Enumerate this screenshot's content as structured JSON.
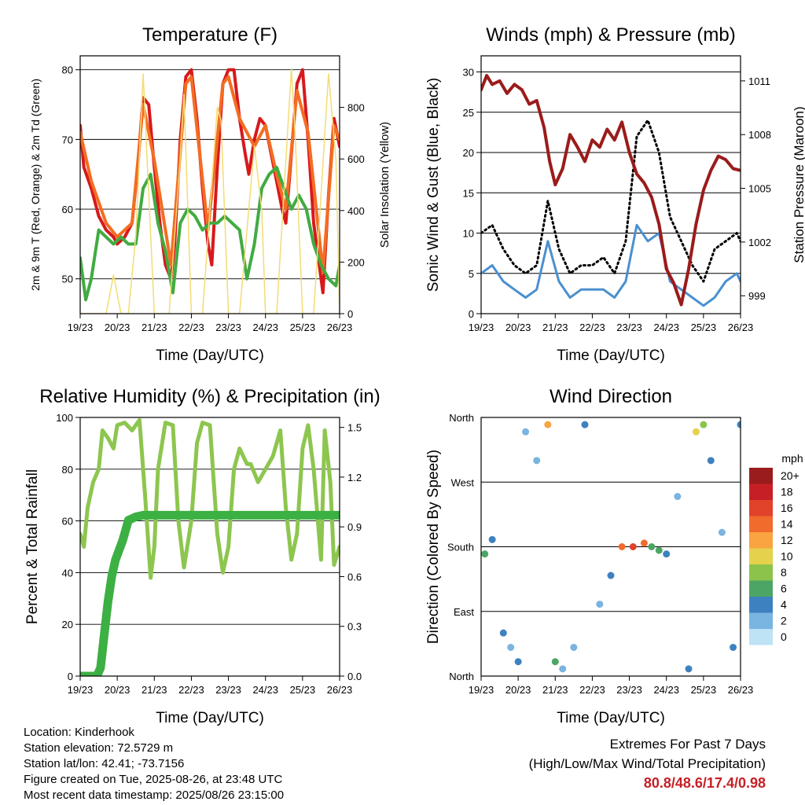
{
  "chart_data": [
    {
      "type": "line",
      "title": "Temperature (F)",
      "xlabel": "Time (Day/UTC)",
      "ylabel_left": "2m & 9m T (Red, Orange) & 2m Td (Green)",
      "ylabel_right": "Solar Insolation (Yellow)",
      "x_ticks": [
        "19/23",
        "20/23",
        "21/23",
        "22/23",
        "23/23",
        "24/23",
        "25/23",
        "26/23"
      ],
      "ylim_left": [
        45,
        82
      ],
      "yticks_left": [
        50,
        60,
        70,
        80
      ],
      "ylim_right": [
        0,
        1000
      ],
      "yticks_right": [
        0,
        200,
        400,
        600,
        800
      ],
      "grid": "horizontal",
      "series": [
        {
          "name": "2m T",
          "color": "#d7191c",
          "axis": "left",
          "x": [
            0,
            0.1,
            0.3,
            0.5,
            0.7,
            0.9,
            1.0,
            1.2,
            1.4,
            1.55,
            1.7,
            1.85,
            2.0,
            2.15,
            2.3,
            2.45,
            2.55,
            2.7,
            2.85,
            3.0,
            3.15,
            3.3,
            3.45,
            3.55,
            3.7,
            3.85,
            4.0,
            4.15,
            4.3,
            4.45,
            4.55,
            4.7,
            4.85,
            5.0,
            5.15,
            5.3,
            5.45,
            5.55,
            5.7,
            5.85,
            6.0,
            6.15,
            6.3,
            6.45,
            6.55,
            6.7,
            6.85,
            7.0
          ],
          "y": [
            72,
            66,
            63,
            59,
            57,
            56,
            55,
            56,
            58,
            66,
            76,
            75,
            66,
            58,
            52,
            50,
            55,
            70,
            79,
            80,
            73,
            63,
            55,
            52,
            66,
            78,
            80,
            80,
            73,
            68,
            65,
            70,
            73,
            72,
            68,
            64,
            60,
            58,
            68,
            78,
            80,
            70,
            58,
            52,
            48,
            62,
            73,
            69
          ]
        },
        {
          "name": "9m T",
          "color": "#f46d22",
          "axis": "left",
          "x": [
            0,
            0.3,
            0.7,
            1.0,
            1.4,
            1.7,
            2.0,
            2.45,
            2.85,
            3.0,
            3.45,
            3.85,
            4.0,
            4.3,
            4.7,
            5.0,
            5.3,
            5.55,
            5.85,
            6.15,
            6.55,
            6.85,
            7.0
          ],
          "y": [
            71,
            64,
            58,
            56,
            58,
            75,
            67,
            52,
            78,
            79,
            57,
            78,
            79,
            73,
            69,
            72,
            65,
            60,
            77,
            71,
            51,
            72,
            70
          ]
        },
        {
          "name": "2m Td",
          "color": "#41ab41",
          "axis": "left",
          "x": [
            0,
            0.15,
            0.3,
            0.5,
            0.7,
            0.9,
            1.1,
            1.3,
            1.5,
            1.7,
            1.9,
            2.1,
            2.3,
            2.5,
            2.7,
            2.9,
            3.1,
            3.3,
            3.5,
            3.7,
            3.9,
            4.1,
            4.3,
            4.5,
            4.7,
            4.9,
            5.1,
            5.3,
            5.5,
            5.7,
            5.9,
            6.1,
            6.3,
            6.5,
            6.7,
            6.9,
            7.0
          ],
          "y": [
            53,
            47,
            50,
            57,
            56,
            55,
            56,
            55,
            55,
            63,
            65,
            58,
            54,
            48,
            58,
            60,
            59,
            57,
            58,
            58,
            59,
            58,
            57,
            50,
            55,
            63,
            65,
            66,
            63,
            60,
            62,
            60,
            55,
            52,
            50,
            49,
            52
          ]
        },
        {
          "name": "Solar Insolation",
          "color": "#f3dc74",
          "axis": "right",
          "x": [
            0,
            0.7,
            0.9,
            1.1,
            1.3,
            1.5,
            1.7,
            2.0,
            2.4,
            2.7,
            2.8,
            3.0,
            3.3,
            3.7,
            3.8,
            4.0,
            4.3,
            4.7,
            4.9,
            5.0,
            5.3,
            5.7,
            5.8,
            6.0,
            6.3,
            6.7,
            6.9,
            7.0
          ],
          "y": [
            0,
            0,
            150,
            0,
            0,
            300,
            930,
            0,
            0,
            600,
            850,
            0,
            0,
            800,
            750,
            0,
            0,
            650,
            400,
            0,
            0,
            950,
            700,
            0,
            0,
            930,
            600,
            0
          ]
        }
      ]
    },
    {
      "type": "scatter",
      "title": "Winds (mph) & Pressure (mb)",
      "xlabel": "Time (Day/UTC)",
      "ylabel_left": "Sonic Wind & Gust (Blue, Black)",
      "ylabel_right": "Station Pressure (Maroon)",
      "x_ticks": [
        "19/23",
        "20/23",
        "21/23",
        "22/23",
        "23/23",
        "24/23",
        "25/23",
        "26/23"
      ],
      "ylim_left": [
        0,
        32
      ],
      "yticks_left": [
        0,
        5,
        10,
        15,
        20,
        25,
        30
      ],
      "ylim_right": [
        998,
        1012.4
      ],
      "yticks_right": [
        999,
        1002,
        1005,
        1008,
        1011
      ],
      "grid": "horizontal",
      "series": [
        {
          "name": "Sonic Wind",
          "color": "#4a90d0",
          "axis": "left",
          "x": [
            0,
            0.3,
            0.6,
            0.9,
            1.2,
            1.5,
            1.8,
            2.1,
            2.4,
            2.7,
            3.0,
            3.3,
            3.6,
            3.9,
            4.2,
            4.5,
            4.8,
            5.1,
            5.4,
            5.7,
            6.0,
            6.3,
            6.6,
            6.9,
            7.0
          ],
          "y": [
            5,
            6,
            4,
            3,
            2,
            3,
            9,
            4,
            2,
            3,
            3,
            3,
            2,
            4,
            11,
            9,
            10,
            4,
            3,
            2,
            1,
            2,
            4,
            5,
            4
          ]
        },
        {
          "name": "Gust",
          "color": "#000000",
          "axis": "left",
          "x": [
            0,
            0.3,
            0.6,
            0.9,
            1.2,
            1.5,
            1.8,
            2.1,
            2.4,
            2.7,
            3.0,
            3.3,
            3.6,
            3.9,
            4.2,
            4.5,
            4.8,
            5.1,
            5.4,
            5.7,
            6.0,
            6.3,
            6.6,
            6.9,
            7.0
          ],
          "y": [
            10,
            11,
            8,
            6,
            5,
            6,
            14,
            8,
            5,
            6,
            6,
            7,
            5,
            9,
            22,
            24,
            20,
            12,
            9,
            6,
            4,
            8,
            9,
            10,
            9
          ]
        },
        {
          "name": "Station Pressure",
          "color": "#9b1b1b",
          "axis": "right",
          "x": [
            0,
            0.15,
            0.3,
            0.5,
            0.7,
            0.9,
            1.1,
            1.3,
            1.5,
            1.7,
            1.85,
            2.0,
            2.2,
            2.4,
            2.6,
            2.8,
            3.0,
            3.2,
            3.4,
            3.6,
            3.8,
            4.0,
            4.2,
            4.4,
            4.6,
            4.8,
            5.0,
            5.2,
            5.4,
            5.6,
            5.8,
            6.0,
            6.2,
            6.4,
            6.6,
            6.8,
            7.0
          ],
          "y": [
            1010.5,
            1011.3,
            1010.8,
            1011.0,
            1010.3,
            1010.8,
            1010.5,
            1009.7,
            1009.9,
            1008.4,
            1006.5,
            1005.2,
            1006.1,
            1008.0,
            1007.3,
            1006.5,
            1007.7,
            1007.3,
            1008.3,
            1007.7,
            1008.7,
            1007.0,
            1005.8,
            1005.3,
            1004.5,
            1003.0,
            1000.5,
            999.7,
            998.5,
            1000.5,
            1003.0,
            1004.9,
            1006.0,
            1006.8,
            1006.6,
            1006.1,
            1006.0
          ]
        }
      ]
    },
    {
      "type": "line",
      "title": "Relative Humidity (%) & Precipitation (in)",
      "xlabel": "Time (Day/UTC)",
      "ylabel_left": "Percent & Total Rainfall",
      "x_ticks": [
        "19/23",
        "20/23",
        "21/23",
        "22/23",
        "23/23",
        "24/23",
        "25/23",
        "26/23"
      ],
      "ylim_left": [
        0,
        100
      ],
      "yticks_left": [
        0,
        20,
        40,
        60,
        80,
        100
      ],
      "ylim_right": [
        0,
        1.56
      ],
      "yticks_right": [
        "0.0",
        "0.3",
        "0.6",
        "0.9",
        "1.2",
        "1.5"
      ],
      "grid": "horizontal",
      "series": [
        {
          "name": "Relative Humidity",
          "color": "#8dc64f",
          "axis": "left",
          "x": [
            0,
            0.1,
            0.2,
            0.35,
            0.5,
            0.6,
            0.75,
            0.9,
            1.0,
            1.2,
            1.4,
            1.6,
            1.75,
            1.9,
            2.0,
            2.1,
            2.3,
            2.5,
            2.65,
            2.8,
            3.0,
            3.15,
            3.3,
            3.5,
            3.7,
            3.85,
            4.0,
            4.15,
            4.3,
            4.5,
            4.6,
            4.8,
            5.0,
            5.2,
            5.4,
            5.55,
            5.7,
            5.85,
            6.0,
            6.15,
            6.3,
            6.5,
            6.6,
            6.75,
            6.85,
            7.0
          ],
          "y": [
            55,
            50,
            65,
            75,
            80,
            95,
            92,
            88,
            97,
            98,
            95,
            99,
            70,
            38,
            50,
            80,
            98,
            97,
            60,
            42,
            60,
            90,
            98,
            97,
            55,
            40,
            50,
            80,
            88,
            82,
            82,
            75,
            80,
            85,
            95,
            65,
            45,
            55,
            88,
            97,
            80,
            45,
            95,
            75,
            43,
            50
          ]
        },
        {
          "name": "Total Rainfall",
          "color": "#3cb043",
          "axis": "right",
          "x": [
            0,
            0.2,
            0.45,
            0.55,
            0.65,
            0.75,
            0.85,
            0.95,
            1.05,
            1.15,
            1.3,
            1.5,
            1.7,
            2.0,
            3.0,
            4.0,
            5.0,
            6.0,
            7.0
          ],
          "y": [
            0,
            0,
            0,
            0.05,
            0.25,
            0.45,
            0.6,
            0.7,
            0.76,
            0.82,
            0.94,
            0.96,
            0.97,
            0.97,
            0.97,
            0.97,
            0.97,
            0.97,
            0.97
          ]
        }
      ]
    },
    {
      "type": "scatter",
      "title": "Wind Direction",
      "xlabel": "Time (Day/UTC)",
      "ylabel_left": "Direction (Colored By Speed)",
      "x_ticks": [
        "19/23",
        "20/23",
        "21/23",
        "22/23",
        "23/23",
        "24/23",
        "25/23",
        "26/23"
      ],
      "y_ticks": [
        "North",
        "East",
        "South",
        "West",
        "North"
      ],
      "colorbar": {
        "title": "mph",
        "labels": [
          "20+",
          "18",
          "16",
          "14",
          "12",
          "10",
          "8",
          "6",
          "4",
          "2",
          "0"
        ],
        "colors": [
          "#9b1c1c",
          "#c62026",
          "#e0422a",
          "#f06b2c",
          "#f9a440",
          "#e6d14c",
          "#8cc34b",
          "#4da565",
          "#3e81c0",
          "#7ab4e0",
          "#bde3f4"
        ]
      },
      "series": [
        {
          "name": "direction",
          "x": [
            0.1,
            0.3,
            0.6,
            0.8,
            1.0,
            1.2,
            1.5,
            1.8,
            2.0,
            2.2,
            2.5,
            2.8,
            3.2,
            3.5,
            3.8,
            4.1,
            4.4,
            4.6,
            4.8,
            5.0,
            5.3,
            5.6,
            5.8,
            6.0,
            6.2,
            6.5,
            6.8,
            7.0
          ],
          "y": [
            170,
            190,
            60,
            40,
            20,
            340,
            300,
            350,
            20,
            10,
            40,
            350,
            100,
            140,
            180,
            180,
            185,
            180,
            175,
            170,
            250,
            10,
            340,
            350,
            300,
            200,
            40,
            350
          ],
          "speed": [
            6,
            5,
            4,
            3,
            4,
            2,
            3,
            12,
            6,
            2,
            2,
            5,
            3,
            4,
            14,
            16,
            14,
            7,
            6,
            4,
            2,
            4,
            10,
            8,
            4,
            3,
            4,
            5
          ]
        }
      ]
    }
  ],
  "info": {
    "location": "Location: Kinderhook",
    "elevation": "Station elevation: 72.5729 m",
    "latlon": "Station lat/lon: 42.41; -73.7156",
    "created": "Figure created on Tue, 2025-08-26, at 23:48 UTC",
    "recent": "Most recent data timestamp: 2025/08/26 23:15:00"
  },
  "extremes": {
    "title": "Extremes For Past 7 Days",
    "subtitle": "(High/Low/Max Wind/Total Precipitation)",
    "values": "80.8/48.6/17.4/0.98"
  }
}
